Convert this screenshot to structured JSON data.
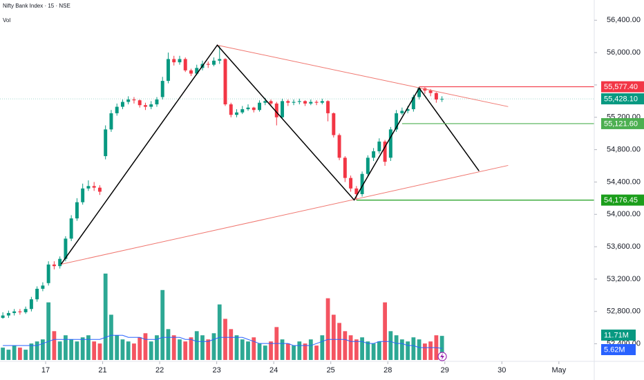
{
  "chart_data": {
    "type": "candlestick",
    "title": "Nifty Bank Index · 15 · NSE",
    "xticks": [
      {
        "value": 7.5,
        "label": "17"
      },
      {
        "value": 17.5,
        "label": "21"
      },
      {
        "value": 27.5,
        "label": "22"
      },
      {
        "value": 37.5,
        "label": "23"
      },
      {
        "value": 47.5,
        "label": "24"
      },
      {
        "value": 57.5,
        "label": "25"
      },
      {
        "value": 67.5,
        "label": "28"
      },
      {
        "value": 77.5,
        "label": "29"
      },
      {
        "value": 87.5,
        "label": "30"
      },
      {
        "value": 97.5,
        "label": "May"
      }
    ],
    "xlim": [
      -0.5,
      103.7
    ],
    "ylim": [
      52200,
      56650
    ],
    "yticks": [
      {
        "value": 52400,
        "label": "52,400.00"
      },
      {
        "value": 52800,
        "label": "52,800.00"
      },
      {
        "value": 53200,
        "label": "53,200.00"
      },
      {
        "value": 53600,
        "label": "53,600.00"
      },
      {
        "value": 54000,
        "label": "54,000.00"
      },
      {
        "value": 54400,
        "label": "54,400.00"
      },
      {
        "value": 54800,
        "label": "54,800.00"
      },
      {
        "value": 55200,
        "label": "55,200.00"
      },
      {
        "value": 55600,
        "label": "55,600.00"
      },
      {
        "value": 56000,
        "label": "56,000.00"
      },
      {
        "value": 56400,
        "label": "56,400.00"
      }
    ],
    "up_color": "#089981",
    "down_color": "#f23645",
    "open": [
      52720,
      52750,
      52780,
      52800,
      52790,
      52830,
      52950,
      53080,
      53150,
      53380,
      53360,
      53450,
      53700,
      53950,
      54150,
      54320,
      54350,
      54330,
      54720,
      55050,
      55250,
      55330,
      55390,
      55420,
      55410,
      55350,
      55330,
      55360,
      55450,
      55650,
      55920,
      55880,
      55920,
      55780,
      55740,
      55810,
      55860,
      55850,
      55900,
      55920,
      55360,
      55230,
      55260,
      55300,
      55320,
      55290,
      55380,
      55400,
      55370,
      55200,
      55400,
      55380,
      55390,
      55400,
      55370,
      55390,
      55380,
      55400,
      55250,
      54980,
      54700,
      54450,
      54320,
      54250,
      54500,
      54700,
      54780,
      54900,
      54700,
      55050,
      55250,
      55280,
      55300,
      55450,
      55560,
      55530,
      55500,
      55420
    ],
    "high": [
      52790,
      52810,
      52830,
      52830,
      52860,
      52980,
      53110,
      53160,
      53420,
      53420,
      53480,
      53730,
      53990,
      54200,
      54380,
      54420,
      54400,
      54360,
      55100,
      55290,
      55370,
      55420,
      55460,
      55450,
      55420,
      55380,
      55400,
      55450,
      55700,
      56000,
      55960,
      55960,
      55940,
      55800,
      55850,
      55900,
      55890,
      55940,
      56090,
      55930,
      55380,
      55300,
      55340,
      55360,
      55330,
      55410,
      55440,
      55420,
      55390,
      55430,
      55420,
      55420,
      55430,
      55410,
      55420,
      55410,
      55430,
      55410,
      55260,
      55000,
      54720,
      54480,
      54350,
      54530,
      54730,
      54820,
      54940,
      54920,
      55080,
      55290,
      55320,
      55340,
      55480,
      55577.4,
      55570,
      55550,
      55510,
      55460
    ],
    "low": [
      52710,
      52720,
      52750,
      52760,
      52770,
      52800,
      52920,
      53050,
      53120,
      53320,
      53330,
      53420,
      53670,
      53920,
      54120,
      54290,
      54290,
      54240,
      54680,
      55020,
      55220,
      55300,
      55360,
      55370,
      55320,
      55290,
      55300,
      55330,
      55420,
      55620,
      55840,
      55850,
      55760,
      55710,
      55720,
      55780,
      55810,
      55830,
      55860,
      55340,
      55200,
      55200,
      55240,
      55280,
      55260,
      55270,
      55350,
      55340,
      55100,
      55180,
      55340,
      55350,
      55360,
      55340,
      55350,
      55350,
      55360,
      55150,
      54950,
      54670,
      54400,
      54280,
      54176.45,
      54220,
      54470,
      54660,
      54750,
      54600,
      54660,
      55020,
      55230,
      55250,
      55270,
      55420,
      55490,
      55460,
      55380,
      55390
    ],
    "close": [
      52750,
      52780,
      52800,
      52790,
      52830,
      52950,
      53080,
      53120,
      53380,
      53360,
      53450,
      53700,
      53950,
      54150,
      54320,
      54350,
      54330,
      54280,
      55050,
      55250,
      55330,
      55390,
      55420,
      55410,
      55350,
      55330,
      55360,
      55420,
      55650,
      55920,
      55880,
      55920,
      55780,
      55740,
      55810,
      55860,
      55850,
      55900,
      55920,
      55360,
      55230,
      55260,
      55300,
      55320,
      55290,
      55380,
      55400,
      55370,
      55200,
      55400,
      55380,
      55390,
      55400,
      55370,
      55390,
      55380,
      55400,
      55250,
      54980,
      54700,
      54450,
      54320,
      54250,
      54500,
      54700,
      54780,
      54900,
      54650,
      55050,
      55250,
      55280,
      55300,
      55450,
      55560,
      55530,
      55500,
      55420,
      55428.1
    ],
    "volume": {
      "name": "Vol",
      "vlim": [
        0,
        175
      ],
      "last_label": "11.71M",
      "values": [
        6,
        5,
        7,
        6,
        5,
        8,
        9,
        10,
        28,
        14,
        9,
        12,
        10,
        9,
        11,
        12,
        9,
        8,
        42,
        22,
        12,
        10,
        9,
        8,
        11,
        13,
        9,
        12,
        34,
        15,
        12,
        10,
        9,
        11,
        14,
        12,
        10,
        13,
        27,
        20,
        15,
        12,
        10,
        9,
        11,
        8,
        7,
        9,
        16,
        10,
        8,
        7,
        9,
        8,
        10,
        7,
        12,
        30,
        22,
        18,
        14,
        12,
        10,
        11,
        9,
        8,
        9,
        28,
        14,
        12,
        10,
        9,
        11,
        10,
        8,
        9,
        12,
        11.71
      ]
    },
    "volume_ma": {
      "color": "#2962ff",
      "last_label": "5.62M",
      "values": [
        7,
        7,
        7,
        7,
        7,
        7,
        7,
        8,
        9,
        10,
        10,
        10,
        10,
        10,
        10,
        10,
        10,
        10,
        11,
        12,
        12,
        12,
        11,
        11,
        11,
        10,
        10,
        10,
        11,
        11,
        11,
        11,
        10,
        10,
        9,
        9,
        9,
        10,
        11,
        11,
        11,
        11,
        11,
        10,
        9,
        8,
        8,
        8,
        8,
        8,
        8,
        7,
        7,
        7,
        7,
        8,
        9,
        10,
        10,
        10,
        10,
        9,
        9,
        9,
        8,
        8,
        9,
        9,
        9,
        8,
        8,
        7,
        7,
        6,
        6,
        6,
        6,
        5.62
      ]
    },
    "last_price": {
      "value": 55428.1,
      "label": "55,428.10",
      "color": "#089981"
    },
    "levels": [
      {
        "value": 55577.4,
        "label": "55,577.40",
        "color": "#f23645",
        "from": 73
      },
      {
        "value": 55121.6,
        "label": "55,121.60",
        "color": "#4caf50",
        "from": 70
      },
      {
        "value": 54176.45,
        "label": "54,176.45",
        "color": "#1b9e1b",
        "from": 62
      }
    ],
    "trendlines": [
      {
        "color": "#f0766f",
        "points": [
          [
            10.2,
            53383
          ],
          [
            88.6,
            54605
          ]
        ]
      },
      {
        "color": "#f0766f",
        "points": [
          [
            37.6,
            56092
          ],
          [
            88.6,
            55332
          ]
        ]
      },
      {
        "color": "#000000",
        "points": [
          [
            10.2,
            53383
          ],
          [
            37.6,
            56092
          ],
          [
            61.6,
            54178
          ],
          [
            73,
            55562
          ],
          [
            83.5,
            54537
          ]
        ]
      }
    ]
  }
}
